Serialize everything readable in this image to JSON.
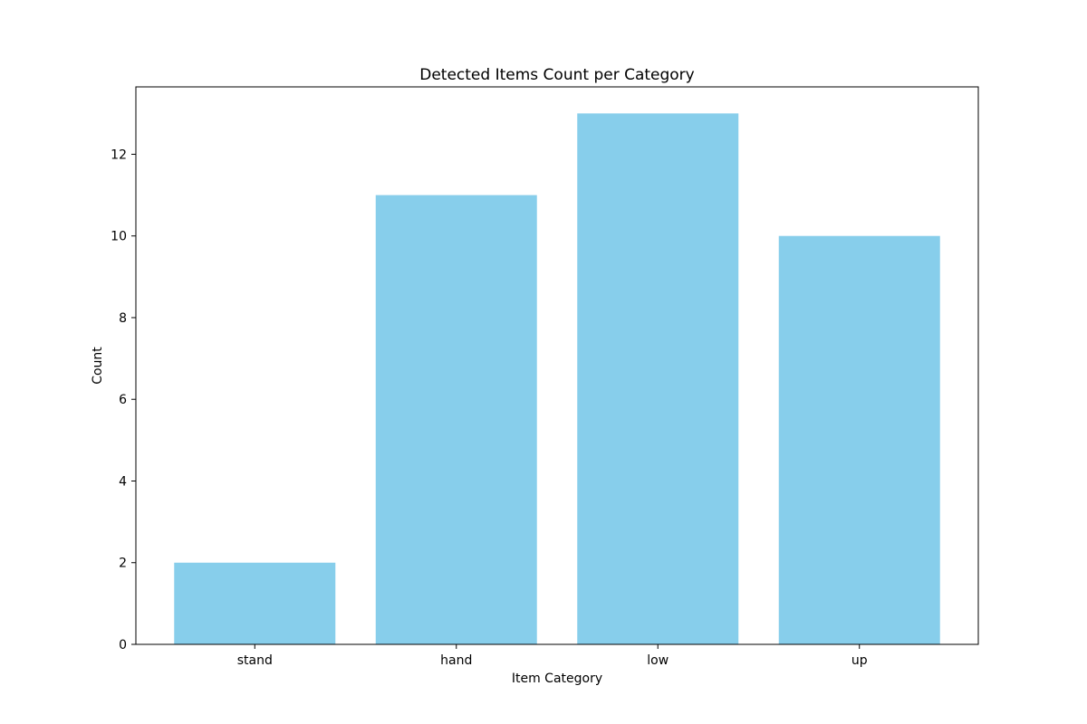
{
  "chart_data": {
    "type": "bar",
    "title": "Detected Items Count per Category",
    "xlabel": "Item Category",
    "ylabel": "Count",
    "categories": [
      "stand",
      "hand",
      "low",
      "up"
    ],
    "values": [
      2,
      11,
      13,
      10
    ],
    "ylim": [
      0,
      13.65
    ],
    "yticks": [
      0,
      2,
      4,
      6,
      8,
      10,
      12
    ],
    "bar_color": "#87ceeb",
    "grid": false,
    "legend": "none"
  }
}
